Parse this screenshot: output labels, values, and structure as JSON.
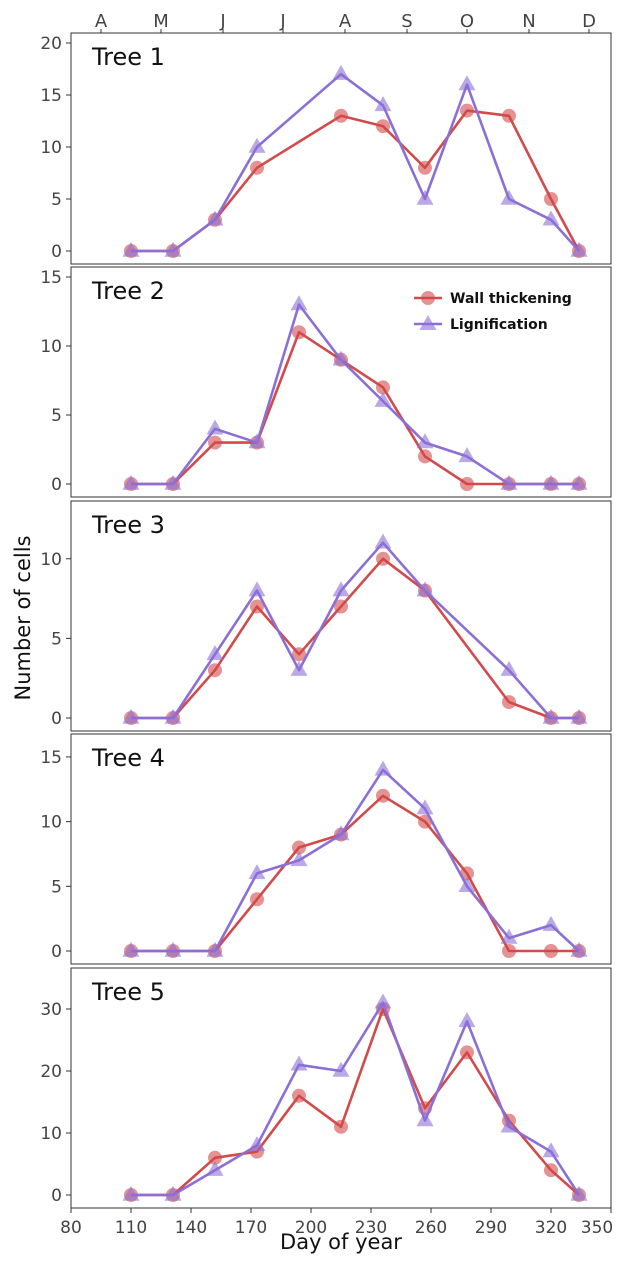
{
  "chart_data": {
    "type": "line",
    "xlabel": "Day of year",
    "ylabel": "Number of cells",
    "xlim": [
      80,
      350
    ],
    "x_ticks": [
      80,
      110,
      140,
      170,
      200,
      230,
      260,
      290,
      320,
      350
    ],
    "month_labels": [
      "A",
      "M",
      "J",
      "J",
      "A",
      "S",
      "O",
      "N",
      "D"
    ],
    "month_positions": [
      95,
      125,
      156,
      186,
      217,
      248,
      278,
      309,
      339
    ],
    "legend": {
      "placement": "top-right",
      "panel": 2,
      "entries": [
        "Wall thickening",
        "Lignification"
      ]
    },
    "colors": {
      "wall_thickening": "#d24a4a",
      "lignification": "#8c6fd6"
    },
    "panels": [
      {
        "title": "Tree 1",
        "ylim": [
          0,
          20
        ],
        "y_ticks": [
          0,
          5,
          10,
          15,
          20
        ],
        "series": [
          {
            "name": "Wall thickening",
            "marker": "circle",
            "x": [
              110,
              131,
              152,
              173,
              215,
              236,
              257,
              278,
              299,
              320,
              334
            ],
            "y": [
              0,
              0,
              3,
              8,
              13,
              12,
              8,
              13.5,
              13,
              5,
              0
            ]
          },
          {
            "name": "Lignification",
            "marker": "triangle",
            "x": [
              110,
              131,
              152,
              173,
              215,
              236,
              257,
              278,
              299,
              320,
              334
            ],
            "y": [
              0,
              0,
              3,
              10,
              17,
              14,
              5,
              16,
              5,
              3,
              0
            ]
          }
        ]
      },
      {
        "title": "Tree 2",
        "ylim": [
          0,
          15
        ],
        "y_ticks": [
          0,
          5,
          10,
          15
        ],
        "series": [
          {
            "name": "Wall thickening",
            "marker": "circle",
            "x": [
              110,
              131,
              152,
              173,
              194,
              215,
              236,
              257,
              278,
              299,
              320,
              334
            ],
            "y": [
              0,
              0,
              3,
              3,
              11,
              9,
              7,
              2,
              0,
              0,
              0,
              0
            ]
          },
          {
            "name": "Lignification",
            "marker": "triangle",
            "x": [
              110,
              131,
              152,
              173,
              194,
              215,
              236,
              257,
              278,
              299,
              320,
              334
            ],
            "y": [
              0,
              0,
              4,
              3,
              13,
              9,
              6,
              3,
              2,
              0,
              0,
              0
            ]
          }
        ]
      },
      {
        "title": "Tree 3",
        "ylim": [
          0,
          13
        ],
        "y_ticks": [
          0,
          5,
          10
        ],
        "series": [
          {
            "name": "Wall thickening",
            "marker": "circle",
            "x": [
              110,
              131,
              152,
              173,
              194,
              215,
              236,
              257,
              299,
              320,
              334
            ],
            "y": [
              0,
              0,
              3,
              7,
              4,
              7,
              10,
              8,
              1,
              0,
              0
            ]
          },
          {
            "name": "Lignification",
            "marker": "triangle",
            "x": [
              110,
              131,
              152,
              173,
              194,
              215,
              236,
              257,
              299,
              320,
              334
            ],
            "y": [
              0,
              0,
              4,
              8,
              3,
              8,
              11,
              8,
              3,
              0,
              0
            ]
          }
        ]
      },
      {
        "title": "Tree 4",
        "ylim": [
          0,
          16
        ],
        "y_ticks": [
          0,
          5,
          10,
          15
        ],
        "series": [
          {
            "name": "Wall thickening",
            "marker": "circle",
            "x": [
              110,
              131,
              152,
              173,
              194,
              215,
              236,
              257,
              278,
              299,
              320,
              334
            ],
            "y": [
              0,
              0,
              0,
              4,
              8,
              9,
              12,
              10,
              6,
              0,
              0,
              0
            ]
          },
          {
            "name": "Lignification",
            "marker": "triangle",
            "x": [
              110,
              131,
              152,
              173,
              194,
              215,
              236,
              257,
              278,
              299,
              320,
              334
            ],
            "y": [
              0,
              0,
              0,
              6,
              7,
              9,
              14,
              11,
              5,
              1,
              2,
              0
            ]
          }
        ]
      },
      {
        "title": "Tree 5",
        "ylim": [
          0,
          35
        ],
        "y_ticks": [
          0,
          10,
          20,
          30
        ],
        "series": [
          {
            "name": "Wall thickening",
            "marker": "circle",
            "x": [
              110,
              131,
              152,
              173,
              194,
              215,
              236,
              257,
              278,
              299,
              320,
              334
            ],
            "y": [
              0,
              0,
              6,
              7,
              16,
              11,
              30,
              14,
              23,
              12,
              4,
              0
            ]
          },
          {
            "name": "Lignification",
            "marker": "triangle",
            "x": [
              110,
              131,
              152,
              173,
              194,
              215,
              236,
              257,
              278,
              299,
              320,
              334
            ],
            "y": [
              0,
              0,
              4,
              8,
              21,
              20,
              31,
              12,
              28,
              11,
              7,
              0
            ]
          }
        ]
      }
    ]
  }
}
